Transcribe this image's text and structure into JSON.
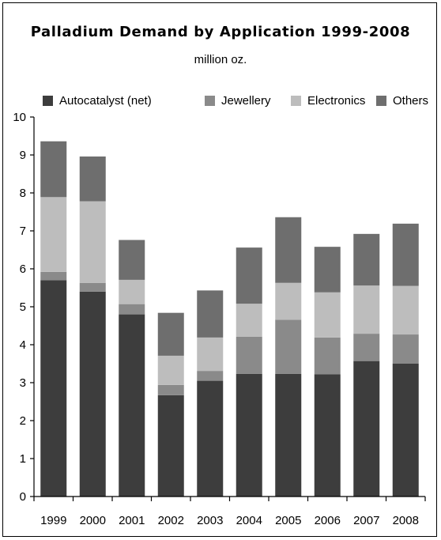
{
  "chart_data": {
    "type": "bar",
    "stacked": true,
    "title": "Palladium Demand by Application 1999-2008",
    "subtitle": "million oz.",
    "xlabel": "",
    "ylabel": "",
    "categories": [
      "1999",
      "2000",
      "2001",
      "2002",
      "2003",
      "2004",
      "2005",
      "2006",
      "2007",
      "2008"
    ],
    "ylim": [
      0,
      10
    ],
    "yticks": [
      "0",
      "1",
      "2",
      "3",
      "4",
      "5",
      "6",
      "7",
      "8",
      "9",
      "10"
    ],
    "grid": false,
    "legend_position": "top",
    "series": [
      {
        "name": "Autocatalyst (net)",
        "color": "#3d3d3d",
        "values": [
          5.7,
          5.4,
          4.8,
          2.67,
          3.05,
          3.23,
          3.23,
          3.22,
          3.57,
          3.5
        ]
      },
      {
        "name": "Jewellery",
        "color": "#8a8a8a",
        "values": [
          0.22,
          0.23,
          0.27,
          0.27,
          0.26,
          0.98,
          1.43,
          0.97,
          0.72,
          0.77
        ]
      },
      {
        "name": "Electronics",
        "color": "#bdbdbd",
        "values": [
          1.97,
          2.15,
          0.64,
          0.77,
          0.88,
          0.87,
          0.97,
          1.19,
          1.27,
          1.28
        ]
      },
      {
        "name": "Others",
        "color": "#6e6e6e",
        "values": [
          1.47,
          1.18,
          1.05,
          1.13,
          1.24,
          1.48,
          1.73,
          1.2,
          1.36,
          1.64
        ]
      }
    ]
  }
}
